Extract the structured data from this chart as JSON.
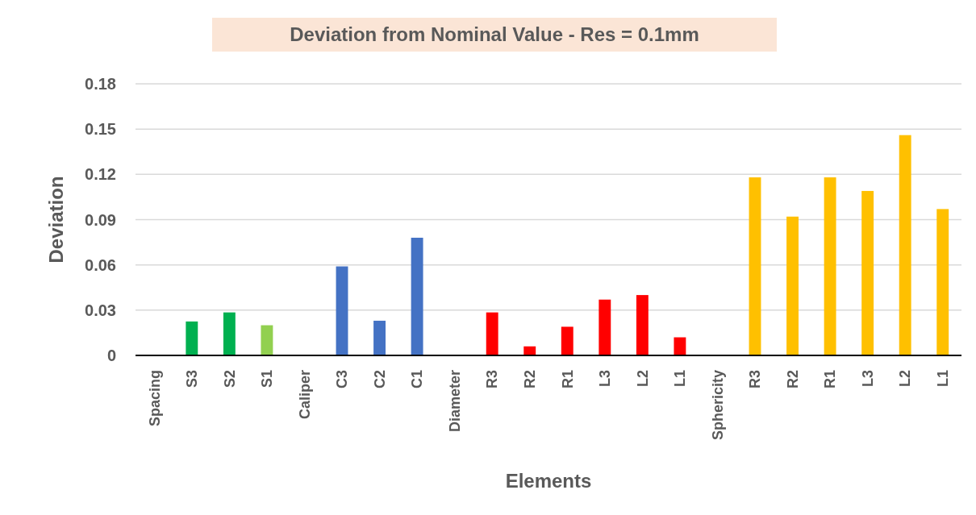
{
  "chart_data": {
    "type": "bar",
    "title": "Deviation from Nominal Value - Res = 0.1mm",
    "xlabel": "Elements",
    "ylabel": "Deviation",
    "categories": [
      "Spacing",
      "S3",
      "S2",
      "S1",
      "Caliper",
      "C3",
      "C2",
      "C1",
      "Diameter",
      "R3",
      "R2",
      "R1",
      "L3",
      "L2",
      "L1",
      "Sphericity",
      "R3",
      "R2",
      "R1",
      "L3",
      "L2",
      "L1"
    ],
    "values": [
      null,
      0.0225,
      0.0285,
      0.02,
      null,
      0.059,
      0.023,
      0.078,
      null,
      0.0285,
      0.006,
      0.019,
      0.037,
      0.04,
      0.012,
      null,
      0.118,
      0.092,
      0.118,
      0.109,
      0.146,
      0.097
    ],
    "colors": [
      null,
      "#00b050",
      "#00b050",
      "#92d050",
      null,
      "#4472c4",
      "#4472c4",
      "#4472c4",
      null,
      "#ff0000",
      "#ff0000",
      "#ff0000",
      "#ff0000",
      "#ff0000",
      "#ff0000",
      null,
      "#ffc000",
      "#ffc000",
      "#ffc000",
      "#ffc000",
      "#ffc000",
      "#ffc000"
    ],
    "ylim": [
      0,
      0.18
    ],
    "yticks": [
      0,
      0.03,
      0.06,
      0.09,
      0.12,
      0.15,
      0.18
    ],
    "grid": "y"
  }
}
